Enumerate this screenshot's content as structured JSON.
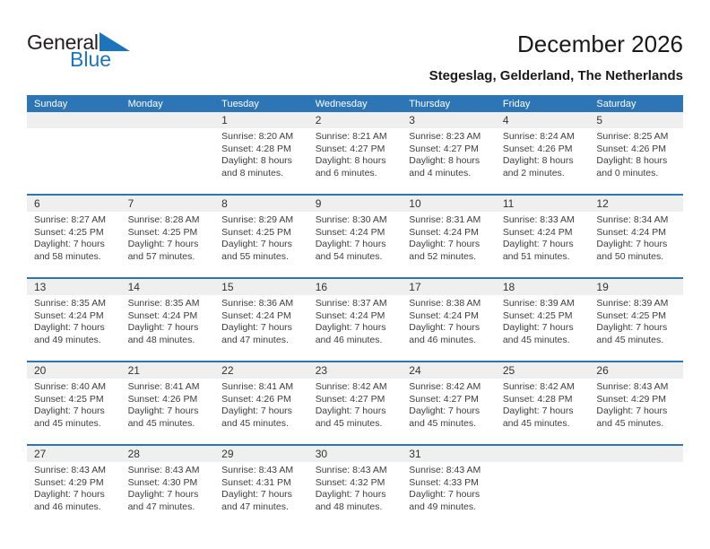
{
  "logo": {
    "part1": "General",
    "part2": "Blue"
  },
  "header": {
    "title": "December 2026",
    "subtitle": "Stegeslag, Gelderland, The Netherlands"
  },
  "colors": {
    "accent_blue": "#2e75b6",
    "logo_blue": "#1c75bc",
    "band_gray": "#efefef"
  },
  "calendar": {
    "day_headers": [
      "Sunday",
      "Monday",
      "Tuesday",
      "Wednesday",
      "Thursday",
      "Friday",
      "Saturday"
    ],
    "weeks": [
      [
        {
          "day": "",
          "lines": []
        },
        {
          "day": "",
          "lines": []
        },
        {
          "day": "1",
          "lines": [
            "Sunrise: 8:20 AM",
            "Sunset: 4:28 PM",
            "Daylight: 8 hours",
            "and 8 minutes."
          ]
        },
        {
          "day": "2",
          "lines": [
            "Sunrise: 8:21 AM",
            "Sunset: 4:27 PM",
            "Daylight: 8 hours",
            "and 6 minutes."
          ]
        },
        {
          "day": "3",
          "lines": [
            "Sunrise: 8:23 AM",
            "Sunset: 4:27 PM",
            "Daylight: 8 hours",
            "and 4 minutes."
          ]
        },
        {
          "day": "4",
          "lines": [
            "Sunrise: 8:24 AM",
            "Sunset: 4:26 PM",
            "Daylight: 8 hours",
            "and 2 minutes."
          ]
        },
        {
          "day": "5",
          "lines": [
            "Sunrise: 8:25 AM",
            "Sunset: 4:26 PM",
            "Daylight: 8 hours",
            "and 0 minutes."
          ]
        }
      ],
      [
        {
          "day": "6",
          "lines": [
            "Sunrise: 8:27 AM",
            "Sunset: 4:25 PM",
            "Daylight: 7 hours",
            "and 58 minutes."
          ]
        },
        {
          "day": "7",
          "lines": [
            "Sunrise: 8:28 AM",
            "Sunset: 4:25 PM",
            "Daylight: 7 hours",
            "and 57 minutes."
          ]
        },
        {
          "day": "8",
          "lines": [
            "Sunrise: 8:29 AM",
            "Sunset: 4:25 PM",
            "Daylight: 7 hours",
            "and 55 minutes."
          ]
        },
        {
          "day": "9",
          "lines": [
            "Sunrise: 8:30 AM",
            "Sunset: 4:24 PM",
            "Daylight: 7 hours",
            "and 54 minutes."
          ]
        },
        {
          "day": "10",
          "lines": [
            "Sunrise: 8:31 AM",
            "Sunset: 4:24 PM",
            "Daylight: 7 hours",
            "and 52 minutes."
          ]
        },
        {
          "day": "11",
          "lines": [
            "Sunrise: 8:33 AM",
            "Sunset: 4:24 PM",
            "Daylight: 7 hours",
            "and 51 minutes."
          ]
        },
        {
          "day": "12",
          "lines": [
            "Sunrise: 8:34 AM",
            "Sunset: 4:24 PM",
            "Daylight: 7 hours",
            "and 50 minutes."
          ]
        }
      ],
      [
        {
          "day": "13",
          "lines": [
            "Sunrise: 8:35 AM",
            "Sunset: 4:24 PM",
            "Daylight: 7 hours",
            "and 49 minutes."
          ]
        },
        {
          "day": "14",
          "lines": [
            "Sunrise: 8:35 AM",
            "Sunset: 4:24 PM",
            "Daylight: 7 hours",
            "and 48 minutes."
          ]
        },
        {
          "day": "15",
          "lines": [
            "Sunrise: 8:36 AM",
            "Sunset: 4:24 PM",
            "Daylight: 7 hours",
            "and 47 minutes."
          ]
        },
        {
          "day": "16",
          "lines": [
            "Sunrise: 8:37 AM",
            "Sunset: 4:24 PM",
            "Daylight: 7 hours",
            "and 46 minutes."
          ]
        },
        {
          "day": "17",
          "lines": [
            "Sunrise: 8:38 AM",
            "Sunset: 4:24 PM",
            "Daylight: 7 hours",
            "and 46 minutes."
          ]
        },
        {
          "day": "18",
          "lines": [
            "Sunrise: 8:39 AM",
            "Sunset: 4:25 PM",
            "Daylight: 7 hours",
            "and 45 minutes."
          ]
        },
        {
          "day": "19",
          "lines": [
            "Sunrise: 8:39 AM",
            "Sunset: 4:25 PM",
            "Daylight: 7 hours",
            "and 45 minutes."
          ]
        }
      ],
      [
        {
          "day": "20",
          "lines": [
            "Sunrise: 8:40 AM",
            "Sunset: 4:25 PM",
            "Daylight: 7 hours",
            "and 45 minutes."
          ]
        },
        {
          "day": "21",
          "lines": [
            "Sunrise: 8:41 AM",
            "Sunset: 4:26 PM",
            "Daylight: 7 hours",
            "and 45 minutes."
          ]
        },
        {
          "day": "22",
          "lines": [
            "Sunrise: 8:41 AM",
            "Sunset: 4:26 PM",
            "Daylight: 7 hours",
            "and 45 minutes."
          ]
        },
        {
          "day": "23",
          "lines": [
            "Sunrise: 8:42 AM",
            "Sunset: 4:27 PM",
            "Daylight: 7 hours",
            "and 45 minutes."
          ]
        },
        {
          "day": "24",
          "lines": [
            "Sunrise: 8:42 AM",
            "Sunset: 4:27 PM",
            "Daylight: 7 hours",
            "and 45 minutes."
          ]
        },
        {
          "day": "25",
          "lines": [
            "Sunrise: 8:42 AM",
            "Sunset: 4:28 PM",
            "Daylight: 7 hours",
            "and 45 minutes."
          ]
        },
        {
          "day": "26",
          "lines": [
            "Sunrise: 8:43 AM",
            "Sunset: 4:29 PM",
            "Daylight: 7 hours",
            "and 45 minutes."
          ]
        }
      ],
      [
        {
          "day": "27",
          "lines": [
            "Sunrise: 8:43 AM",
            "Sunset: 4:29 PM",
            "Daylight: 7 hours",
            "and 46 minutes."
          ]
        },
        {
          "day": "28",
          "lines": [
            "Sunrise: 8:43 AM",
            "Sunset: 4:30 PM",
            "Daylight: 7 hours",
            "and 47 minutes."
          ]
        },
        {
          "day": "29",
          "lines": [
            "Sunrise: 8:43 AM",
            "Sunset: 4:31 PM",
            "Daylight: 7 hours",
            "and 47 minutes."
          ]
        },
        {
          "day": "30",
          "lines": [
            "Sunrise: 8:43 AM",
            "Sunset: 4:32 PM",
            "Daylight: 7 hours",
            "and 48 minutes."
          ]
        },
        {
          "day": "31",
          "lines": [
            "Sunrise: 8:43 AM",
            "Sunset: 4:33 PM",
            "Daylight: 7 hours",
            "and 49 minutes."
          ]
        },
        {
          "day": "",
          "lines": []
        },
        {
          "day": "",
          "lines": []
        }
      ]
    ]
  }
}
